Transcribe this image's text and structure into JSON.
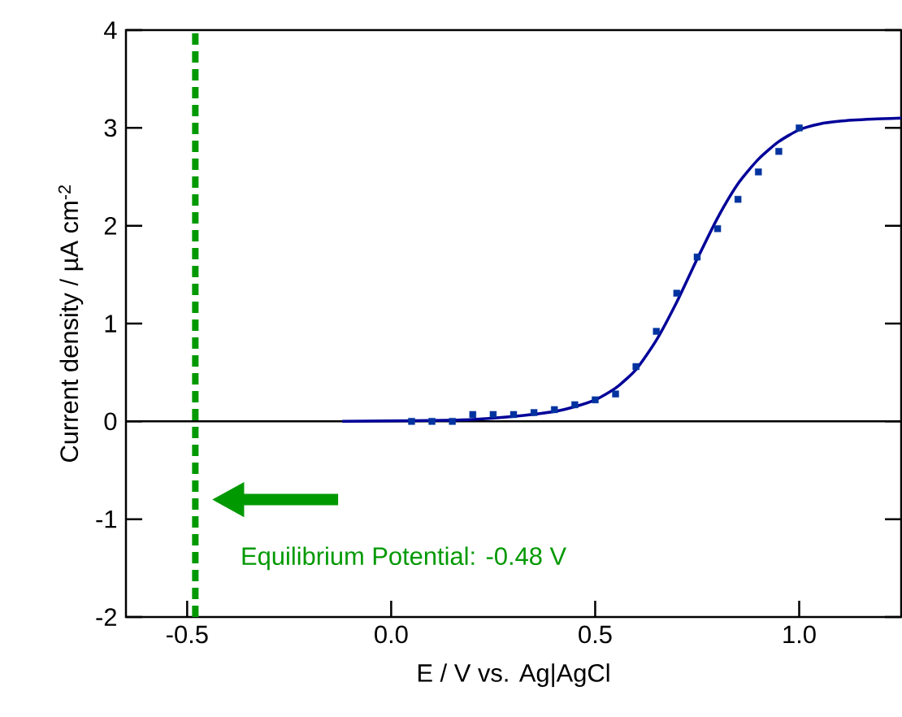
{
  "chart_data": {
    "type": "scatter",
    "xlabel": "E / V vs. Ag|AgCl",
    "ylabel": "Current density / µA cm$^{-2}$",
    "xlim": [
      -0.65,
      1.25
    ],
    "ylim": [
      -2,
      4
    ],
    "xticks": [
      -0.5,
      {
        "value": 0,
        "label": "0.0"
      },
      0.5,
      {
        "value": 1,
        "label": "1.0"
      }
    ],
    "yticks": [
      -2,
      -1,
      0,
      1,
      2,
      3,
      4
    ],
    "series": [
      {
        "marker": "square",
        "color": "#0033a0",
        "x": [
          0.05,
          0.1,
          0.15,
          0.2,
          0.25,
          0.3,
          0.35,
          0.4,
          0.45,
          0.5,
          0.55,
          0.6,
          0.65,
          0.7,
          0.75,
          0.8,
          0.85,
          0.9,
          0.95,
          1.0
        ],
        "values": [
          0,
          0,
          0,
          0.07,
          0.07,
          0.07,
          0.09,
          0.12,
          0.17,
          0.22,
          0.28,
          0.56,
          0.92,
          1.31,
          1.68,
          1.97,
          2.27,
          2.55,
          2.76,
          3.0
        ]
      },
      {
        "type": "line",
        "marker": "none",
        "line_style": "solid",
        "color": "#000099",
        "x": [
          -0.12,
          0.1,
          0.2,
          0.3,
          0.4,
          0.45,
          0.5,
          0.55,
          0.6,
          0.65,
          0.7,
          0.75,
          0.8,
          0.85,
          0.9,
          0.95,
          1.0,
          1.05,
          1.1,
          1.18,
          1.25
        ],
        "values": [
          0,
          0.01,
          0.02,
          0.05,
          0.1,
          0.15,
          0.22,
          0.34,
          0.53,
          0.83,
          1.22,
          1.66,
          2.08,
          2.43,
          2.68,
          2.86,
          2.98,
          3.04,
          3.07,
          3.09,
          3.1
        ]
      }
    ],
    "ref_lines": [
      {
        "axis": "y",
        "value": 0,
        "color": "#000000",
        "line_style": "solid"
      },
      {
        "axis": "x",
        "value": -0.48,
        "color": "#009900",
        "line_style": "dashed"
      }
    ],
    "annotations": [
      {
        "text": "Equilibrium Potential: -0.48 V",
        "x": -0.48,
        "y": -0.8
      }
    ]
  }
}
